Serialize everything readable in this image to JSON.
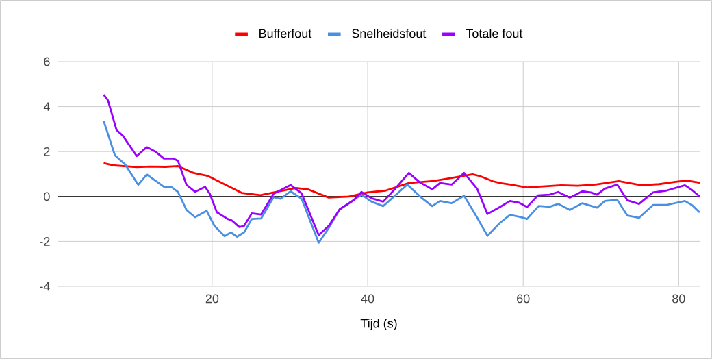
{
  "chart_data": {
    "type": "line",
    "xlabel": "Tijd (s)",
    "xlim": [
      0.2,
      82.7
    ],
    "ylim": [
      -4,
      6
    ],
    "xticks": [
      20,
      40,
      60,
      80
    ],
    "yticks": [
      -4,
      -2,
      0,
      2,
      4,
      6
    ],
    "grid": true,
    "legend": "top",
    "marker": "none",
    "line_style": "solid",
    "series": [
      {
        "name": "Bufferfout",
        "color": "#ff0000",
        "x": [
          6.05,
          7.4,
          10.3,
          12,
          14,
          15.6,
          17.6,
          19.4,
          22.0,
          23.8,
          26.2,
          28.8,
          30.8,
          32.3,
          35.0,
          37.6,
          40.0,
          42.3,
          45.3,
          48.5,
          51.1,
          53.5,
          54.5,
          56.1,
          57.0,
          58.5,
          60.5,
          62.5,
          64.9,
          67,
          69.3,
          72.3,
          75.2,
          77.5,
          79.6,
          81.1,
          82.7
        ],
        "values": [
          1.48,
          1.38,
          1.31,
          1.33,
          1.32,
          1.35,
          1.05,
          0.92,
          0.47,
          0.16,
          0.06,
          0.24,
          0.38,
          0.32,
          -0.05,
          0.0,
          0.18,
          0.26,
          0.6,
          0.69,
          0.84,
          0.99,
          0.9,
          0.68,
          0.6,
          0.52,
          0.4,
          0.45,
          0.5,
          0.48,
          0.53,
          0.68,
          0.5,
          0.55,
          0.65,
          0.71,
          0.61
        ]
      },
      {
        "name": "Snelheidsfout",
        "color": "#4a90e2",
        "x": [
          6.05,
          7.5,
          8.8,
          10.5,
          11.6,
          13.8,
          14.7,
          15.6,
          16.7,
          17.8,
          19.3,
          20.3,
          21.6,
          22.4,
          23.2,
          24.1,
          25.1,
          26.3,
          27.9,
          28.8,
          30.1,
          31.5,
          33.7,
          35.0,
          36.4,
          39.2,
          40.5,
          42.0,
          43.5,
          45.1,
          47.0,
          48.3,
          49.3,
          50.8,
          52.4,
          54.1,
          55.4,
          57.0,
          58.3,
          59.5,
          60.5,
          62.0,
          63.4,
          64.5,
          66.0,
          67.6,
          69.5,
          70.5,
          72.1,
          73.4,
          74.9,
          76.7,
          78.4,
          80.8,
          81.7,
          82.7
        ],
        "values": [
          3.36,
          1.83,
          1.43,
          0.52,
          0.98,
          0.43,
          0.44,
          0.2,
          -0.6,
          -0.92,
          -0.64,
          -1.31,
          -1.77,
          -1.6,
          -1.79,
          -1.6,
          -1.0,
          -0.98,
          -0.03,
          -0.1,
          0.23,
          -0.1,
          -2.06,
          -1.4,
          -0.57,
          0.08,
          -0.23,
          -0.43,
          0.03,
          0.53,
          -0.08,
          -0.43,
          -0.2,
          -0.3,
          0.03,
          -0.95,
          -1.75,
          -1.18,
          -0.82,
          -0.9,
          -1.0,
          -0.42,
          -0.46,
          -0.33,
          -0.6,
          -0.3,
          -0.5,
          -0.2,
          -0.15,
          -0.85,
          -0.95,
          -0.38,
          -0.38,
          -0.2,
          -0.38,
          -0.71
        ]
      },
      {
        "name": "Totale fout",
        "color": "#9b00ff",
        "x": [
          6.05,
          6.6,
          7.7,
          8.5,
          10.3,
          11.6,
          12.7,
          13.8,
          15.0,
          15.6,
          16.7,
          17.8,
          19.1,
          19.7,
          20.6,
          22.0,
          22.5,
          23.5,
          24.1,
          25.1,
          26.3,
          27.9,
          30.1,
          31.5,
          33.7,
          35.0,
          36.4,
          38.2,
          39.2,
          40.5,
          42.0,
          43.5,
          45.3,
          46.7,
          48.3,
          49.3,
          50.8,
          52.4,
          54.1,
          55.4,
          57.0,
          58.3,
          59.5,
          60.5,
          61.9,
          63.4,
          64.5,
          66.0,
          67.6,
          68.7,
          69.5,
          70.5,
          72.1,
          73.4,
          74.9,
          76.7,
          78.4,
          80.8,
          81.7,
          82.7
        ],
        "values": [
          4.53,
          4.28,
          2.96,
          2.71,
          1.8,
          2.2,
          2.0,
          1.69,
          1.69,
          1.59,
          0.52,
          0.21,
          0.43,
          0.12,
          -0.7,
          -1.0,
          -1.06,
          -1.36,
          -1.31,
          -0.75,
          -0.8,
          0.12,
          0.51,
          0.14,
          -1.72,
          -1.3,
          -0.57,
          -0.17,
          0.2,
          -0.08,
          -0.23,
          0.33,
          1.05,
          0.63,
          0.32,
          0.6,
          0.53,
          1.05,
          0.33,
          -0.78,
          -0.47,
          -0.2,
          -0.28,
          -0.47,
          0.05,
          0.08,
          0.2,
          -0.05,
          0.23,
          0.18,
          0.08,
          0.35,
          0.53,
          -0.17,
          -0.33,
          0.18,
          0.26,
          0.5,
          0.29,
          0.0
        ]
      }
    ]
  }
}
